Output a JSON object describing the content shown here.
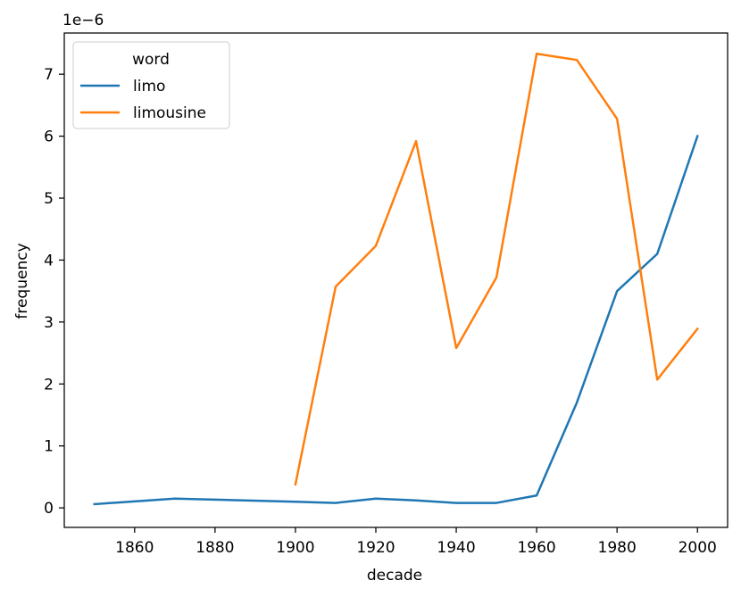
{
  "chart_data": {
    "type": "line",
    "xlabel": "decade",
    "ylabel": "frequency",
    "y_offset_label": "1e−6",
    "xlim": [
      1842.5,
      2007.5
    ],
    "ylim": [
      -3.15e-07,
      7.665e-06
    ],
    "x_ticks": [
      1860,
      1880,
      1900,
      1920,
      1940,
      1960,
      1980,
      2000
    ],
    "y_ticks": [
      0,
      1,
      2,
      3,
      4,
      5,
      6,
      7
    ],
    "y_tick_scale": 1e-06,
    "grid": false,
    "legend": {
      "title": "word",
      "placement": "top-left"
    },
    "series": [
      {
        "name": "limo",
        "color": "#1f77b4",
        "x": [
          1850,
          1870,
          1900,
          1910,
          1920,
          1930,
          1940,
          1950,
          1960,
          1970,
          1980,
          1990,
          2000
        ],
        "values": [
          6e-08,
          1.5e-07,
          1e-07,
          8e-08,
          1.5e-07,
          1.2e-07,
          8e-08,
          8e-08,
          2e-07,
          1.7e-06,
          3.5e-06,
          4.1e-06,
          6e-06
        ]
      },
      {
        "name": "limousine",
        "color": "#ff7f0e",
        "x": [
          1900,
          1910,
          1920,
          1930,
          1940,
          1950,
          1960,
          1970,
          1980,
          1990,
          2000
        ],
        "values": [
          3.8e-07,
          3.57e-06,
          4.23e-06,
          5.92e-06,
          2.58e-06,
          3.72e-06,
          7.33e-06,
          7.23e-06,
          6.28e-06,
          2.07e-06,
          2.89e-06
        ]
      }
    ]
  }
}
